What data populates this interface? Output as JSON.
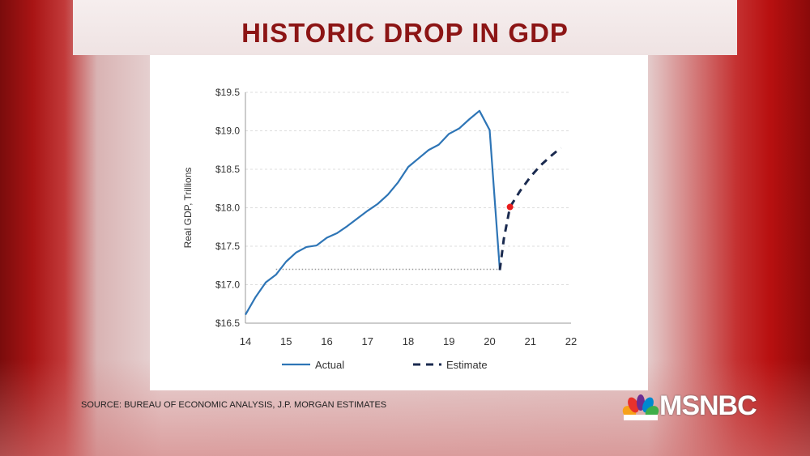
{
  "title": "HISTORIC DROP IN GDP",
  "source": "SOURCE: BUREAU OF ECONOMIC ANALYSIS, J.P. MORGAN ESTIMATES",
  "logo": "MSNBC",
  "chart_data": {
    "type": "line",
    "title": "",
    "xlabel": "",
    "ylabel": "Real GDP, Trillions",
    "xlim": [
      2014,
      2022
    ],
    "ylim": [
      16.5,
      19.5
    ],
    "x_ticks": [
      {
        "v": 2014,
        "label": "14"
      },
      {
        "v": 2015,
        "label": "15"
      },
      {
        "v": 2016,
        "label": "16"
      },
      {
        "v": 2017,
        "label": "17"
      },
      {
        "v": 2018,
        "label": "18"
      },
      {
        "v": 2019,
        "label": "19"
      },
      {
        "v": 2020,
        "label": "20"
      },
      {
        "v": 2021,
        "label": "21"
      },
      {
        "v": 2022,
        "label": "22"
      }
    ],
    "y_ticks": [
      {
        "v": 16.5,
        "label": "$16.5"
      },
      {
        "v": 17.0,
        "label": "$17.0"
      },
      {
        "v": 17.5,
        "label": "$17.5"
      },
      {
        "v": 18.0,
        "label": "$18.0"
      },
      {
        "v": 18.5,
        "label": "$18.5"
      },
      {
        "v": 19.0,
        "label": "$19.0"
      },
      {
        "v": 19.5,
        "label": "$19.5"
      }
    ],
    "grid": true,
    "legend_position": "bottom",
    "series": [
      {
        "name": "Actual",
        "style": "solid",
        "color": "#2e75b6",
        "x": [
          2014,
          2014.25,
          2014.5,
          2014.75,
          2015,
          2015.25,
          2015.5,
          2015.75,
          2016,
          2016.25,
          2016.5,
          2016.75,
          2017,
          2017.25,
          2017.5,
          2017.75,
          2018,
          2018.25,
          2018.5,
          2018.75,
          2019,
          2019.25,
          2019.5,
          2019.75,
          2020,
          2020.25
        ],
        "y": [
          16.61,
          16.84,
          17.03,
          17.13,
          17.3,
          17.42,
          17.49,
          17.51,
          17.61,
          17.67,
          17.76,
          17.86,
          17.96,
          18.05,
          18.17,
          18.33,
          18.53,
          18.64,
          18.75,
          18.82,
          18.96,
          19.03,
          19.15,
          19.26,
          19.01,
          17.19
        ]
      },
      {
        "name": "Estimate",
        "style": "dashed",
        "color": "#1a2a4f",
        "x": [
          2020.25,
          2020.35,
          2020.5,
          2020.75,
          2021,
          2021.25,
          2021.5,
          2021.75
        ],
        "y": [
          17.19,
          17.6,
          18.01,
          18.22,
          18.4,
          18.55,
          18.67,
          18.78
        ]
      }
    ],
    "annotations": [
      {
        "type": "highlight_point",
        "x": 2020.5,
        "y": 18.01,
        "color": "#e81c1c"
      },
      {
        "type": "reference_line",
        "style": "dotted",
        "y": 17.2,
        "x_from": 2014.75,
        "x_to": 2020.25
      }
    ]
  }
}
